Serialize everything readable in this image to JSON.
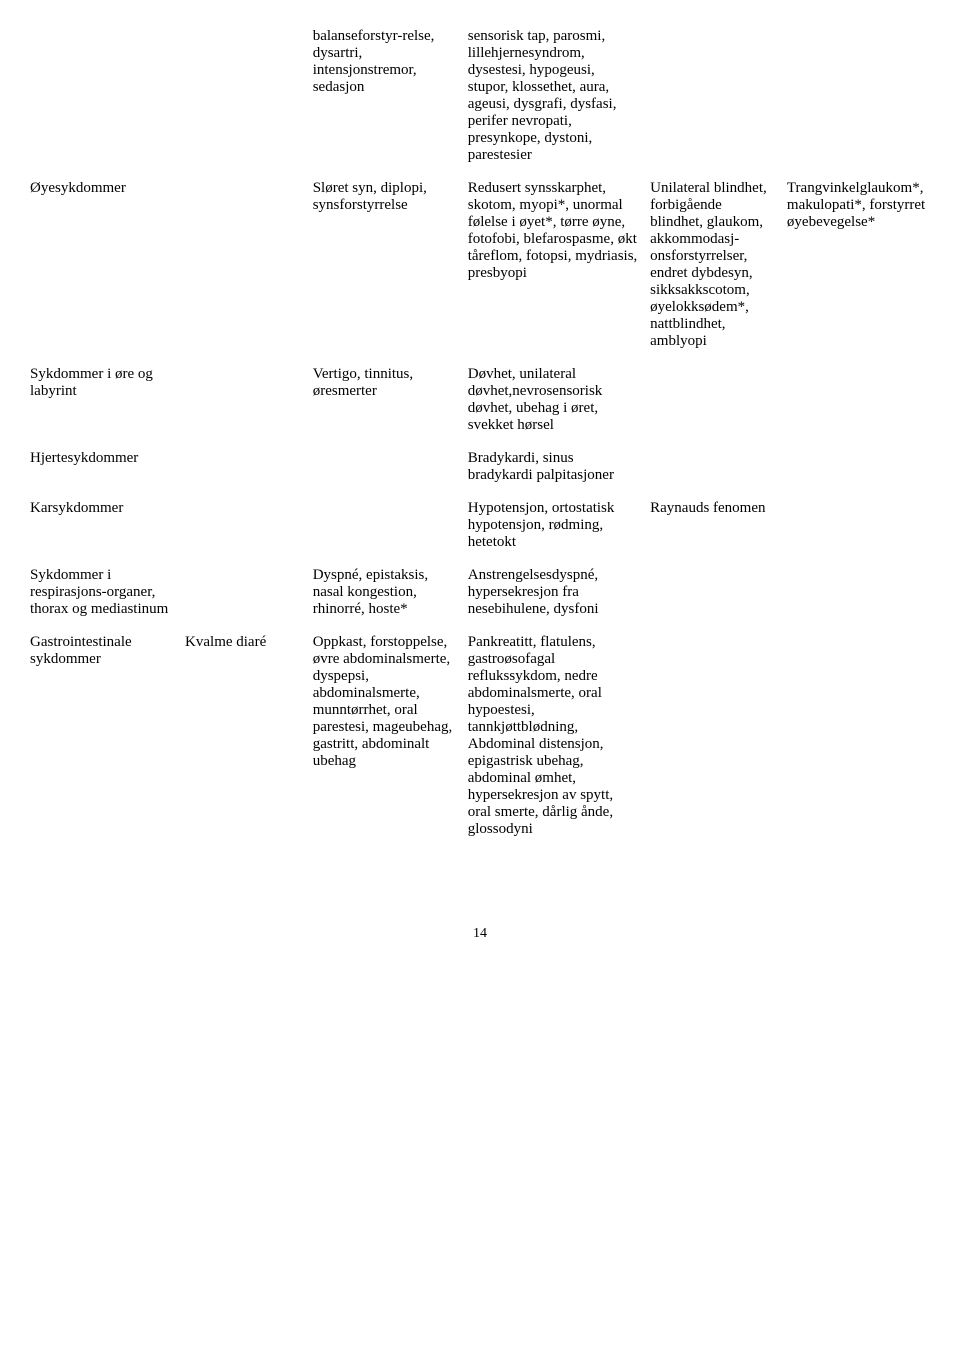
{
  "rows": [
    {
      "c1": "",
      "c2": "",
      "c3": "balanseforstyr-relse, dysartri, intensjonstremor, sedasjon",
      "c4": "sensorisk tap, parosmi, lillehjernesyndrom, dysestesi, hypogeusi, stupor, klossethet, aura, ageusi, dysgrafi, dysfasi, perifer nevropati, presynkope, dystoni, parestesier",
      "c5": "",
      "c6": ""
    },
    {
      "c1": "Øyesykdommer",
      "c2": "",
      "c3": "Sløret syn, diplopi, synsforstyrrelse",
      "c4": "Redusert synsskarphet, skotom, myopi*, unormal følelse i øyet*, tørre øyne, fotofobi, blefarospasme, økt tåreflom, fotopsi, mydriasis, presbyopi",
      "c5": "Unilateral blindhet, forbigående blindhet, glaukom, akkommodasj-onsforstyrrelser, endret dybdesyn, sikksakkscotom, øyelokksødem*, nattblindhet, amblyopi",
      "c6": "Trangvinkelglaukom*, makulopati*, forstyrret øyebevegelse*"
    },
    {
      "c1": "Sykdommer i øre og labyrint",
      "c2": "",
      "c3": "Vertigo, tinnitus, øresmerter",
      "c4": "Døvhet, unilateral døvhet,nevrosensorisk døvhet, ubehag i øret, svekket hørsel",
      "c5": "",
      "c6": ""
    },
    {
      "c1": "Hjertesykdommer",
      "c2": "",
      "c3": "",
      "c4": "Bradykardi, sinus bradykardi palpitasjoner",
      "c5": "",
      "c6": ""
    },
    {
      "c1": "Karsykdommer",
      "c2": "",
      "c3": "",
      "c4": "Hypotensjon, ortostatisk hypotensjon, rødming, hetetokt",
      "c5": "Raynauds fenomen",
      "c6": ""
    },
    {
      "c1": "Sykdommer i respirasjons-organer, thorax og mediastinum",
      "c2": "",
      "c3": "Dyspné, epistaksis, nasal kongestion, rhinorré, hoste*",
      "c4": "Anstrengelsesdyspné, hypersekresjon fra nesebihulene, dysfoni",
      "c5": "",
      "c6": ""
    },
    {
      "c1": "Gastrointestinale sykdommer",
      "c2": "Kvalme diaré",
      "c3": "Oppkast, forstoppelse, øvre abdominalsmerte, dyspepsi, abdominalsmerte, munntørrhet, oral parestesi, mageubehag, gastritt, abdominalt ubehag",
      "c4": "Pankreatitt, flatulens, gastroøsofagal reflukssykdom, nedre abdominalsmerte, oral hypoestesi, tannkjøttblødning, Abdominal distensjon, epigastrisk ubehag, abdominal ømhet, hypersekresjon av spytt, oral smerte, dårlig ånde, glossodyni",
      "c5": "",
      "c6": ""
    }
  ],
  "page_number": "14"
}
